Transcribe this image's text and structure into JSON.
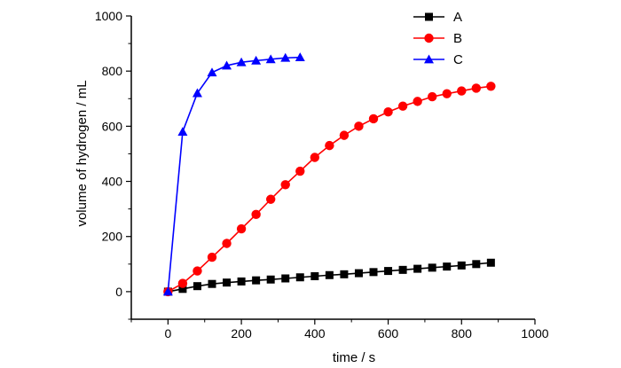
{
  "chart_data": {
    "type": "line",
    "xlabel": "time / s",
    "ylabel": "volume of hydrogen / mL",
    "xlim": [
      -100,
      1000
    ],
    "ylim": [
      -100,
      1000
    ],
    "xticks": [
      0,
      200,
      400,
      600,
      800,
      1000
    ],
    "yticks": [
      0,
      200,
      400,
      600,
      800,
      1000
    ],
    "legend_position": "top-right",
    "series": [
      {
        "name": "A",
        "color": "#000000",
        "marker": "square",
        "x": [
          0,
          40,
          80,
          120,
          160,
          200,
          240,
          280,
          320,
          360,
          400,
          440,
          480,
          520,
          560,
          600,
          640,
          680,
          720,
          760,
          800,
          840,
          880
        ],
        "y": [
          0,
          10,
          20,
          28,
          33,
          37,
          41,
          44,
          48,
          52,
          56,
          60,
          63,
          67,
          71,
          75,
          79,
          83,
          87,
          91,
          95,
          100,
          105
        ]
      },
      {
        "name": "B",
        "color": "#ff0000",
        "marker": "circle",
        "x": [
          0,
          40,
          80,
          120,
          160,
          200,
          240,
          280,
          320,
          360,
          400,
          440,
          480,
          520,
          560,
          600,
          640,
          680,
          720,
          760,
          800,
          840,
          880
        ],
        "y": [
          0,
          30,
          75,
          125,
          175,
          228,
          280,
          335,
          388,
          437,
          487,
          530,
          567,
          600,
          627,
          652,
          673,
          690,
          707,
          718,
          728,
          738,
          745
        ]
      },
      {
        "name": "C",
        "color": "#0000ff",
        "marker": "triangle",
        "x": [
          0,
          40,
          80,
          120,
          160,
          200,
          240,
          280,
          320,
          360
        ],
        "y": [
          0,
          580,
          720,
          795,
          820,
          832,
          838,
          843,
          848,
          850
        ]
      }
    ]
  }
}
